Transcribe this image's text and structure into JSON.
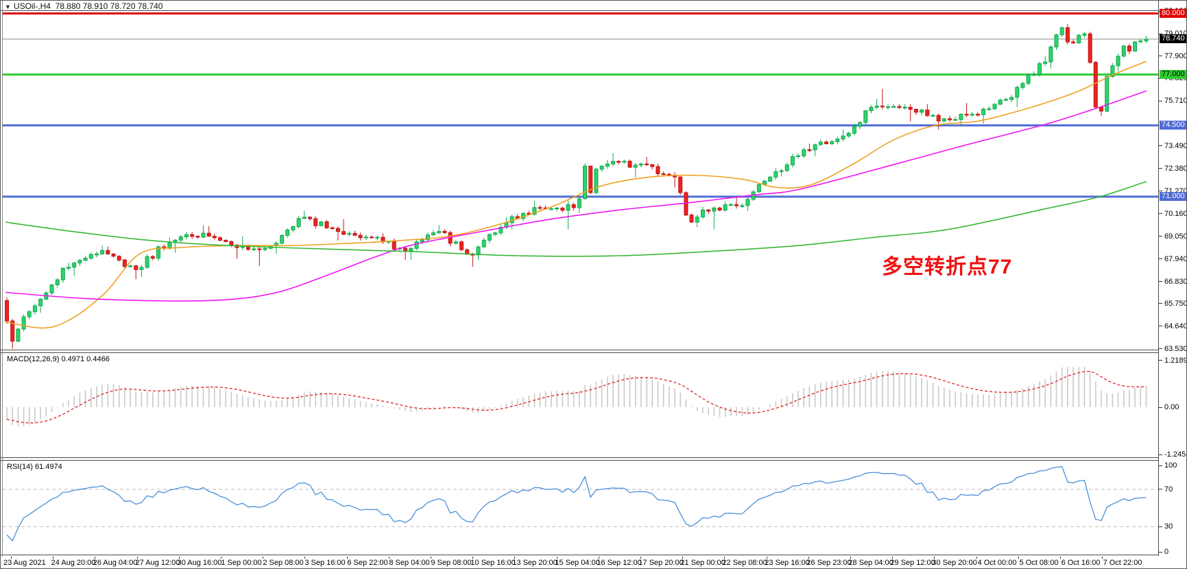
{
  "window": {
    "dropdown_icon": "▼",
    "symbol_timeframe": "USOil-,H4",
    "ohlc_text": "78.880 78.910 78.720 78.740"
  },
  "annotation": {
    "text": "多空转折点77",
    "color": "#f01010"
  },
  "colors": {
    "up_fill": "#2fd26b",
    "up_stroke": "#0fa84e",
    "down_fill": "#ea2421",
    "down_stroke": "#c01210",
    "line_red": "#e00000",
    "line_green": "#2ecc2e",
    "line_blue": "#4f6bd5",
    "price_line": "#888888",
    "price_badge_bg": "#000000",
    "ma_fast": "#f0a020",
    "ma_mid": "#f014f0",
    "ma_slow": "#38b838",
    "macd_hist": "#c9c9c9",
    "macd_signal": "#e02020",
    "rsi_line": "#4a90d8",
    "rsi_level": "#bbbbbb"
  },
  "macd_panel": {
    "label": "MACD(12,26,9) 0.4971 0.4466",
    "ticks": [
      {
        "label": "1.2189",
        "value": 1.2189
      },
      {
        "label": "0.00",
        "value": 0
      },
      {
        "label": "-1.2453",
        "value": -1.2453
      }
    ]
  },
  "rsi_panel": {
    "label": "RSI(14) 61.4974",
    "ticks": [
      {
        "label": "100",
        "value": 100
      },
      {
        "label": "70",
        "value": 70
      },
      {
        "label": "30",
        "value": 30
      },
      {
        "label": "0",
        "value": 0
      }
    ]
  },
  "chart_data": {
    "type": "candlestick",
    "symbol": "USOil-",
    "timeframe": "H4",
    "title_ohlc": {
      "open": 78.88,
      "high": 78.91,
      "low": 78.72,
      "close": 78.74
    },
    "current_price": {
      "value": 78.74,
      "label": "78.740"
    },
    "horizontal_levels": [
      {
        "price": 80.0,
        "label": "80.000",
        "color_key": "line_red",
        "badge_text_color": "#ffffff"
      },
      {
        "price": 77.0,
        "label": "77.000",
        "color_key": "line_green",
        "badge_text_color": "#000000"
      },
      {
        "price": 74.5,
        "label": "74.500",
        "color_key": "line_blue",
        "badge_text_color": "#ffffff"
      },
      {
        "price": 71.0,
        "label": "71.000",
        "color_key": "line_blue",
        "badge_text_color": "#ffffff"
      }
    ],
    "price_axis_ticks": [
      {
        "label": "80.120",
        "price": 80.12
      },
      {
        "label": "79.010",
        "price": 79.01
      },
      {
        "label": "77.900",
        "price": 77.9
      },
      {
        "label": "76.820",
        "price": 76.82
      },
      {
        "label": "75.710",
        "price": 75.71
      },
      {
        "label": "73.490",
        "price": 73.49
      },
      {
        "label": "72.380",
        "price": 72.38
      },
      {
        "label": "71.270",
        "price": 71.27
      },
      {
        "label": "70.160",
        "price": 70.16
      },
      {
        "label": "69.050",
        "price": 69.05
      },
      {
        "label": "67.940",
        "price": 67.94
      },
      {
        "label": "66.830",
        "price": 66.83
      },
      {
        "label": "65.750",
        "price": 65.75
      },
      {
        "label": "64.640",
        "price": 64.64
      },
      {
        "label": "63.530",
        "price": 63.53
      }
    ],
    "x_labels": [
      "23 Aug 2021",
      "24 Aug 20:00",
      "26 Aug 04:00",
      "27 Aug 12:00",
      "30 Aug 16:00",
      "1 Sep 00:00",
      "2 Sep 08:00",
      "3 Sep 16:00",
      "6 Sep 22:00",
      "8 Sep 04:00",
      "9 Sep 08:00",
      "10 Sep 16:00",
      "13 Sep 20:00",
      "15 Sep 04:00",
      "16 Sep 12:00",
      "17 Sep 20:00",
      "21 Sep 00:00",
      "22 Sep 08:00",
      "23 Sep 16:00",
      "26 Sep 23:00",
      "28 Sep 04:00",
      "29 Sep 12:00",
      "30 Sep 20:00",
      "4 Oct 00:00",
      "5 Oct 08:00",
      "6 Oct 16:00",
      "7 Oct 22:00"
    ],
    "daily_ohlc": [
      [
        "23 Aug",
        65.9,
        66.05,
        63.53,
        65.64,
        [
          64.9,
          63.9,
          64.5,
          65.1,
          65.35
        ]
      ],
      [
        "24 Aug",
        65.64,
        67.75,
        65.3,
        67.54
      ],
      [
        "25 Aug",
        67.54,
        68.6,
        67.1,
        68.36
      ],
      [
        "26 Aug",
        68.36,
        68.55,
        66.95,
        67.42
      ],
      [
        "27 Aug",
        67.42,
        69.0,
        67.05,
        68.74
      ],
      [
        "30 Aug",
        68.74,
        69.6,
        68.25,
        69.21
      ],
      [
        "31 Aug",
        69.21,
        69.55,
        67.95,
        68.5
      ],
      [
        "1 Sep",
        68.5,
        69.05,
        67.6,
        68.59
      ],
      [
        "2 Sep",
        68.59,
        70.3,
        68.2,
        69.99
      ],
      [
        "3 Sep",
        69.99,
        70.05,
        68.85,
        69.29
      ],
      [
        "6 Sep",
        69.29,
        69.9,
        68.85,
        69.0
      ],
      [
        "7 Sep",
        69.0,
        69.2,
        67.9,
        68.35
      ],
      [
        "8 Sep",
        68.35,
        69.6,
        67.9,
        69.3
      ],
      [
        "9 Sep",
        69.3,
        69.4,
        67.55,
        68.14
      ],
      [
        "10 Sep",
        68.14,
        70.0,
        67.9,
        69.72
      ],
      [
        "13 Sep",
        69.72,
        70.8,
        69.4,
        70.45
      ],
      [
        "14 Sep",
        70.45,
        70.8,
        69.4,
        70.46
      ],
      [
        "15 Sep",
        70.46,
        72.8,
        70.2,
        72.61,
        [
          70.9,
          72.5,
          71.2,
          72.35,
          72.5
        ]
      ],
      [
        "16 Sep",
        72.61,
        73.14,
        71.95,
        72.61
      ],
      [
        "17 Sep",
        72.61,
        72.95,
        71.45,
        71.97
      ],
      [
        "20 Sep",
        71.97,
        72.0,
        69.5,
        70.29,
        [
          71.2,
          70.1,
          69.75,
          70.0,
          70.35
        ]
      ],
      [
        "21 Sep",
        70.29,
        70.95,
        69.4,
        70.56
      ],
      [
        "22 Sep",
        70.56,
        72.4,
        70.3,
        72.23
      ],
      [
        "23 Sep",
        72.23,
        73.6,
        72.0,
        73.3
      ],
      [
        "24 Sep",
        73.3,
        74.3,
        73.0,
        73.98
      ],
      [
        "27 Sep",
        73.98,
        75.8,
        73.9,
        75.45
      ],
      [
        "28 Sep",
        75.45,
        76.3,
        74.7,
        75.29
      ],
      [
        "29 Sep",
        75.29,
        75.55,
        74.3,
        74.83
      ],
      [
        "30 Sep",
        74.83,
        75.6,
        74.45,
        75.03
      ],
      [
        "1 Oct",
        75.03,
        76.0,
        74.6,
        75.88
      ],
      [
        "4 Oct",
        75.88,
        77.9,
        75.4,
        77.62
      ],
      [
        "5 Oct",
        77.62,
        79.48,
        77.3,
        78.93,
        [
          78.35,
          78.95,
          79.3,
          78.6,
          78.55
        ]
      ],
      [
        "6 Oct",
        78.93,
        79.1,
        74.96,
        77.43,
        [
          79.0,
          77.6,
          75.4,
          75.2,
          76.9
        ]
      ],
      [
        "7 Oct",
        77.43,
        78.9,
        77.15,
        78.74,
        [
          77.9,
          78.4,
          78.15,
          78.6,
          78.65
        ]
      ]
    ],
    "ma_lines": [
      {
        "name": "ma-fast-orange",
        "color_key": "ma_fast",
        "anchors": [
          [
            4,
            64.85
          ],
          [
            60,
            64.55
          ],
          [
            100,
            65.0
          ],
          [
            150,
            66.3
          ],
          [
            200,
            68.2
          ],
          [
            260,
            68.5
          ],
          [
            340,
            68.6
          ],
          [
            420,
            68.6
          ],
          [
            500,
            68.7
          ],
          [
            580,
            68.85
          ],
          [
            650,
            69.05
          ],
          [
            720,
            69.6
          ],
          [
            800,
            70.5
          ],
          [
            870,
            71.5
          ],
          [
            940,
            71.95
          ],
          [
            1010,
            72.05
          ],
          [
            1080,
            71.85
          ],
          [
            1130,
            71.45
          ],
          [
            1180,
            71.6
          ],
          [
            1240,
            72.6
          ],
          [
            1300,
            73.8
          ],
          [
            1360,
            74.5
          ],
          [
            1420,
            74.7
          ],
          [
            1470,
            75.1
          ],
          [
            1520,
            75.6
          ],
          [
            1570,
            76.2
          ],
          [
            1620,
            77.0
          ],
          [
            1668,
            77.65
          ]
        ]
      },
      {
        "name": "ma-mid-magenta",
        "color_key": "ma_mid",
        "anchors": [
          [
            4,
            66.3
          ],
          [
            120,
            66.0
          ],
          [
            240,
            65.88
          ],
          [
            330,
            65.95
          ],
          [
            400,
            66.3
          ],
          [
            470,
            67.1
          ],
          [
            540,
            68.0
          ],
          [
            600,
            68.65
          ],
          [
            700,
            69.3
          ],
          [
            800,
            69.9
          ],
          [
            900,
            70.35
          ],
          [
            1000,
            70.7
          ],
          [
            1100,
            71.1
          ],
          [
            1160,
            71.35
          ],
          [
            1280,
            72.4
          ],
          [
            1400,
            73.5
          ],
          [
            1520,
            74.55
          ],
          [
            1600,
            75.4
          ],
          [
            1668,
            76.2
          ]
        ]
      },
      {
        "name": "ma-slow-green",
        "color_key": "ma_slow",
        "anchors": [
          [
            4,
            69.75
          ],
          [
            100,
            69.3
          ],
          [
            200,
            68.9
          ],
          [
            300,
            68.65
          ],
          [
            450,
            68.45
          ],
          [
            600,
            68.3
          ],
          [
            750,
            68.1
          ],
          [
            900,
            68.1
          ],
          [
            1050,
            68.35
          ],
          [
            1160,
            68.6
          ],
          [
            1270,
            69.0
          ],
          [
            1380,
            69.4
          ],
          [
            1520,
            70.4
          ],
          [
            1600,
            71.0
          ],
          [
            1668,
            71.75
          ]
        ]
      }
    ],
    "macd": {
      "fast": 12,
      "slow": 26,
      "signal": 9,
      "last_value": 0.4971,
      "last_signal": 0.4466,
      "axis_max": 1.2189,
      "axis_min": -1.2453
    },
    "rsi": {
      "period": 14,
      "last_value": 61.4974,
      "levels": [
        70,
        30
      ],
      "axis": [
        0,
        100
      ]
    }
  }
}
